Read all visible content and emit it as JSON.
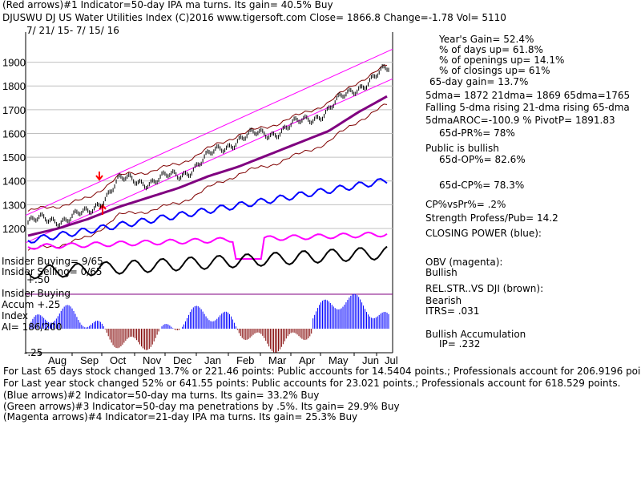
{
  "header": {
    "line1": "(Red arrows)#1 Indicator=50-day IPA ma turns. Its gain= 40.5% Buy",
    "line2": "DJUSWU   DJ US Water Utilities Index  (C)2016 www.tigersoft.com     Close=  1866.8  Change=-1.78 Vol= 5110",
    "date_range": "7/ 21/ 15-  7/ 15/ 16"
  },
  "stats": {
    "years_gain": "Year's Gain= 52.4%",
    "days_up": "% of days up= 61.8%",
    "openings_up": "% of openings up= 14.1%",
    "closings_up": "% of closings up= 61%",
    "gain_65": "65-day gain= 13.7%",
    "dma": "5dma= 1872 21dma= 1869 65dma=1765",
    "dma_trend": "Falling 5-dma rising 21-dma rising 65-dma",
    "aroc": "5dmaAROC=-100.9 %  PivotP= 1891.83",
    "pr": "65d-PR%= 78%",
    "public": "Public is bullish",
    "op": "65d-OP%= 82.6%",
    "cp": "65d-CP%= 78.3%",
    "cpvspr": "CP%vsPr%=  .2%",
    "strength": "Strength Profess/Pub= 14.2",
    "closing_power": "CLOSING POWER (blue):",
    "obv": "OBV (magenta):",
    "obv_status": "Bullish",
    "relstr": "REL.STR..VS DJI (brown):",
    "relstr_status": "Bearish",
    "itrs": "ITRS= .031",
    "accum": "Bullish Accumulation",
    "ip": "IP=  .232"
  },
  "panel_labels": {
    "insider_buying_pct": "Insider Buying= 9/65",
    "insider_selling_pct": "Insider Selling= 0/65",
    "plus50": "+.50",
    "insider_buying": "Insider Buying",
    "accum_plus25": "Accum  +.25",
    "index": "Index",
    "ai": "AI= 186/200",
    "minus25": "-.25"
  },
  "footer": {
    "l1": "For Last 65 days stock changed  13.7% or  221.46 points:  Public accounts for  14.5404 points.;  Professionals account for  206.9196 points.",
    "l2": "For Last year stock changed   52% or  641.55 points:  Public accounts for  23.021 points.;  Professionals account for  618.529 points.",
    "l3": "(Blue arrows)#2 Indicator=50-day ma turns. Its gain= 33.2% Buy",
    "l4": "(Green arrows)#3 Indicator=50-day ma penetrations by .5%. Its gain= 29.9% Buy",
    "l5": "(Magenta arrows)#4 Indicator=21-day IPA ma turns. Its gain= 25.3% Buy"
  },
  "colors": {
    "price_bars": "#000000",
    "channel_lines": "#ff00ff",
    "ma65": "#800080",
    "bands": "#800000",
    "closing_power": "#0000ff",
    "obv": "#ff00ff",
    "relstr": "#000000",
    "accum_bars": "#0000ff",
    "accum_negative": "#800000",
    "dotted_ma": "#ff0000",
    "arrows": "#ff0000"
  },
  "chart_data": {
    "type": "line",
    "title": "DJUSWU   DJ US Water Utilities Index",
    "price_axis_ticks": [
      1200,
      1300,
      1400,
      1500,
      1600,
      1700,
      1800,
      1900
    ],
    "ylim": [
      1150,
      1970
    ],
    "x_months": [
      "Aug",
      "Sep",
      "Oct",
      "Nov",
      "Dec",
      "Jan",
      "Feb",
      "Mar",
      "Apr",
      "May",
      "Jun",
      "Jul"
    ],
    "close_series": {
      "name": "Close",
      "months": [
        "Jul-15",
        "Aug",
        "Sep",
        "Oct",
        "Nov",
        "Dec",
        "Jan",
        "Feb",
        "Mar",
        "Apr",
        "May",
        "Jun",
        "Jul-16"
      ],
      "values": [
        1225,
        1240,
        1260,
        1400,
        1400,
        1420,
        1500,
        1580,
        1600,
        1640,
        1700,
        1800,
        1867
      ]
    },
    "ma65_series": {
      "months": [
        "Jul-15",
        "Aug",
        "Sep",
        "Oct",
        "Nov",
        "Dec",
        "Jan",
        "Feb",
        "Mar",
        "Apr",
        "May",
        "Jun",
        "Jul-16"
      ],
      "values": [
        1170,
        1200,
        1240,
        1290,
        1330,
        1370,
        1420,
        1460,
        1510,
        1560,
        1610,
        1690,
        1760
      ]
    },
    "accum_index_ticks": [
      0.5,
      0.25,
      0,
      -0.25
    ]
  }
}
